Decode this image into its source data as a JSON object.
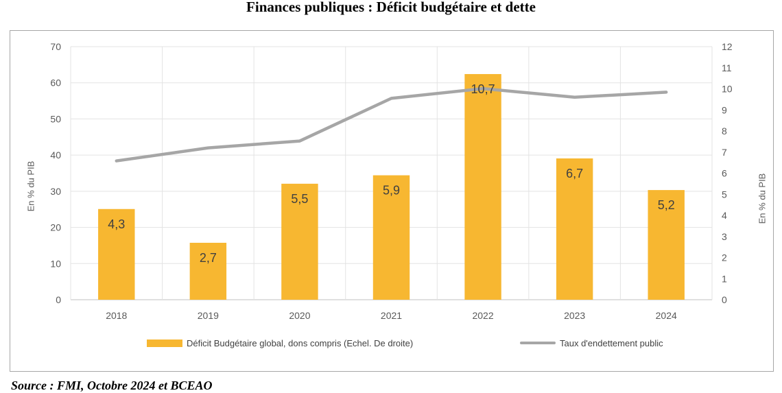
{
  "title": "Finances publiques : Déficit budgétaire et dette",
  "source": "Source : FMI, Octobre 2024 et BCEAO",
  "colors": {
    "bar": "#f7b731",
    "line": "#a6a6a6",
    "grid": "#e3e3e3",
    "axis_text": "#595959"
  },
  "chart_data": {
    "type": "bar",
    "categories": [
      "2018",
      "2019",
      "2020",
      "2021",
      "2022",
      "2023",
      "2024"
    ],
    "left_axis": {
      "label": "En % du PIB",
      "ylim": [
        0,
        70
      ],
      "ticks": [
        0,
        10,
        20,
        30,
        40,
        50,
        60,
        70
      ]
    },
    "right_axis": {
      "label": "En % du PIB",
      "ylim": [
        0,
        12
      ],
      "ticks": [
        0,
        1,
        2,
        3,
        4,
        5,
        6,
        7,
        8,
        9,
        10,
        11,
        12
      ]
    },
    "series": [
      {
        "name": "Déficit Budgétaire global, dons compris (Echel. De droite)",
        "type": "bar",
        "axis": "right",
        "values": [
          4.3,
          2.7,
          5.5,
          5.9,
          10.7,
          6.7,
          5.2
        ],
        "labels": [
          "4,3",
          "2,7",
          "5,5",
          "5,9",
          "10,7",
          "6,7",
          "5,2"
        ]
      },
      {
        "name": "Taux d'endettement public",
        "type": "line",
        "axis": "left",
        "values": [
          38.4,
          42.0,
          43.9,
          55.7,
          58.4,
          56.0,
          57.4
        ]
      }
    ],
    "grid": true,
    "legend": "bottom"
  }
}
